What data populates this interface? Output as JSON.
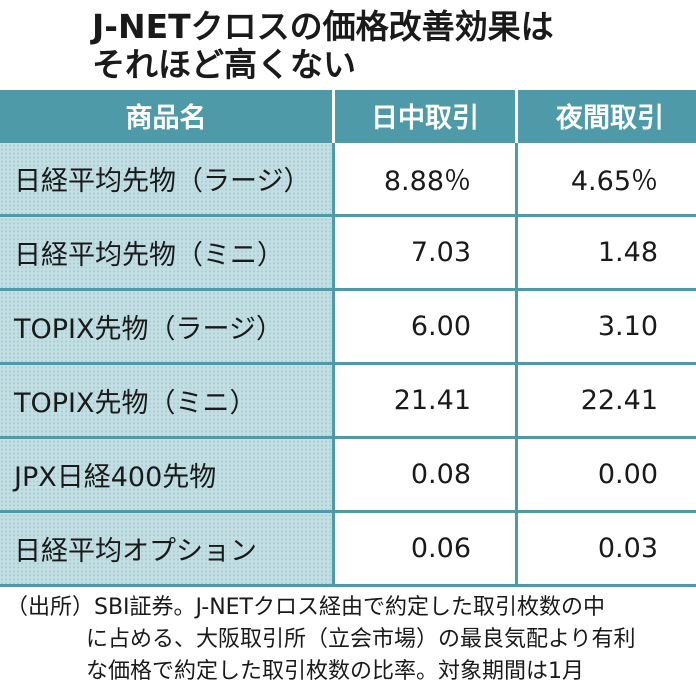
{
  "header": {
    "title_lines": [
      "J-NETクロスの価格改善効果は",
      "それほど高くない"
    ]
  },
  "table": {
    "columns": [
      "商品名",
      "日中取引",
      "夜間取引"
    ],
    "rows": [
      [
        "日経平均先物（ラージ）",
        "8.88％",
        "4.65％"
      ],
      [
        "日経平均先物（ミニ）",
        "7.03",
        "1.48"
      ],
      [
        "TOPIX先物（ラージ）",
        "6.00",
        "3.10"
      ],
      [
        "TOPIX先物（ミニ）",
        "21.41",
        "22.41"
      ],
      [
        "JPX日経400先物",
        "0.08",
        "0.00"
      ],
      [
        "日経平均オプション",
        "0.06",
        "0.03"
      ]
    ]
  },
  "footnote": {
    "lines": [
      "（出所）SBI証券。J-NETクロス経由で約定した取引枚数の中",
      "に占める、大阪取引所（立会市場）の最良気配より有利",
      "な価格で約定した取引枚数の比率。対象期間は1月"
    ]
  }
}
